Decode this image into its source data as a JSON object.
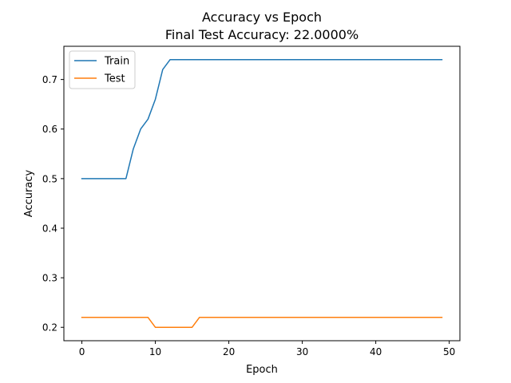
{
  "chart_data": {
    "type": "line",
    "title": "Accuracy vs Epoch",
    "subtitle": "Final Test Accuracy: 22.0000%",
    "xlabel": "Epoch",
    "ylabel": "Accuracy",
    "xlim": [
      -2.45,
      51.45
    ],
    "ylim": [
      0.173,
      0.767
    ],
    "xticks": [
      0,
      10,
      20,
      30,
      40,
      50
    ],
    "yticks": [
      0.2,
      0.3,
      0.4,
      0.5,
      0.6,
      0.7
    ],
    "grid": false,
    "legend_position": "top-left",
    "x": [
      0,
      1,
      2,
      3,
      4,
      5,
      6,
      7,
      8,
      9,
      10,
      11,
      12,
      13,
      14,
      15,
      16,
      17,
      18,
      19,
      20,
      21,
      22,
      23,
      24,
      25,
      26,
      27,
      28,
      29,
      30,
      31,
      32,
      33,
      34,
      35,
      36,
      37,
      38,
      39,
      40,
      41,
      42,
      43,
      44,
      45,
      46,
      47,
      48,
      49
    ],
    "series": [
      {
        "name": "Train",
        "color": "#1f77b4",
        "values": [
          0.5,
          0.5,
          0.5,
          0.5,
          0.5,
          0.5,
          0.5,
          0.56,
          0.6,
          0.62,
          0.66,
          0.72,
          0.74,
          0.74,
          0.74,
          0.74,
          0.74,
          0.74,
          0.74,
          0.74,
          0.74,
          0.74,
          0.74,
          0.74,
          0.74,
          0.74,
          0.74,
          0.74,
          0.74,
          0.74,
          0.74,
          0.74,
          0.74,
          0.74,
          0.74,
          0.74,
          0.74,
          0.74,
          0.74,
          0.74,
          0.74,
          0.74,
          0.74,
          0.74,
          0.74,
          0.74,
          0.74,
          0.74,
          0.74,
          0.74
        ]
      },
      {
        "name": "Test",
        "color": "#ff7f0e",
        "values": [
          0.22,
          0.22,
          0.22,
          0.22,
          0.22,
          0.22,
          0.22,
          0.22,
          0.22,
          0.22,
          0.2,
          0.2,
          0.2,
          0.2,
          0.2,
          0.2,
          0.22,
          0.22,
          0.22,
          0.22,
          0.22,
          0.22,
          0.22,
          0.22,
          0.22,
          0.22,
          0.22,
          0.22,
          0.22,
          0.22,
          0.22,
          0.22,
          0.22,
          0.22,
          0.22,
          0.22,
          0.22,
          0.22,
          0.22,
          0.22,
          0.22,
          0.22,
          0.22,
          0.22,
          0.22,
          0.22,
          0.22,
          0.22,
          0.22,
          0.22
        ]
      }
    ]
  }
}
